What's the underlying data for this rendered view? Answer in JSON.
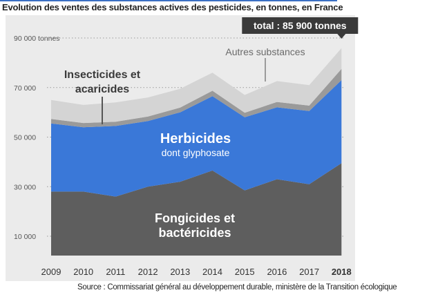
{
  "title": "Evolution des ventes des substances actives des pesticides, en tonnes, en France",
  "source": "Source : Commissariat général au développement durable, ministère de la Transition écologique",
  "colors": {
    "fongicides": "#5e5e5e",
    "herbicides": "#3a78d8",
    "insecticides": "#9a9a9a",
    "autres": "#d4d4d4",
    "panel": "#ebebeb",
    "callout": "#3a3a3a"
  },
  "chart_data": {
    "type": "area",
    "stacked": true,
    "title": "Evolution des ventes des substances actives des pesticides, en tonnes, en France",
    "xlabel": "",
    "ylabel": "",
    "x": [
      "2009",
      "2010",
      "2011",
      "2012",
      "2013",
      "2014",
      "2015",
      "2016",
      "2017",
      "2018"
    ],
    "y_ticks": [
      {
        "value": 10000,
        "label": "10 000"
      },
      {
        "value": 30000,
        "label": "30 000"
      },
      {
        "value": 50000,
        "label": "50 000"
      },
      {
        "value": 70000,
        "label": "70 000"
      },
      {
        "value": 90000,
        "label": "90 000 tonnes"
      }
    ],
    "ylim": [
      0,
      95000
    ],
    "grid": "horizontal-dotted",
    "series": [
      {
        "name": "Fongicides et bactéricides",
        "values": [
          28000,
          28000,
          26000,
          30000,
          32000,
          36500,
          28500,
          33000,
          31000,
          39500
        ]
      },
      {
        "name": "Herbicides dont glyphosate",
        "values": [
          27500,
          26000,
          28500,
          26500,
          28000,
          30000,
          29500,
          29000,
          29500,
          33500
        ]
      },
      {
        "name": "Insecticides et acaricides",
        "values": [
          1800,
          1700,
          1700,
          1800,
          1900,
          2200,
          1800,
          2200,
          2200,
          4500
        ]
      },
      {
        "name": "Autres substances",
        "values": [
          7700,
          7300,
          7800,
          7700,
          7600,
          7300,
          7200,
          8400,
          8300,
          8400
        ]
      }
    ],
    "series_labels": [
      {
        "lines": [
          "Fongicides et",
          "bactéricides"
        ]
      },
      {
        "lines": [
          "Herbicides",
          "dont glyphosate"
        ]
      },
      {
        "lines": [
          "Insecticides et",
          "acaricides"
        ]
      },
      {
        "lines": [
          "Autres substances"
        ]
      }
    ],
    "callout": {
      "text": "total : 85 900 tonnes",
      "year": "2018",
      "value": 85900
    }
  }
}
